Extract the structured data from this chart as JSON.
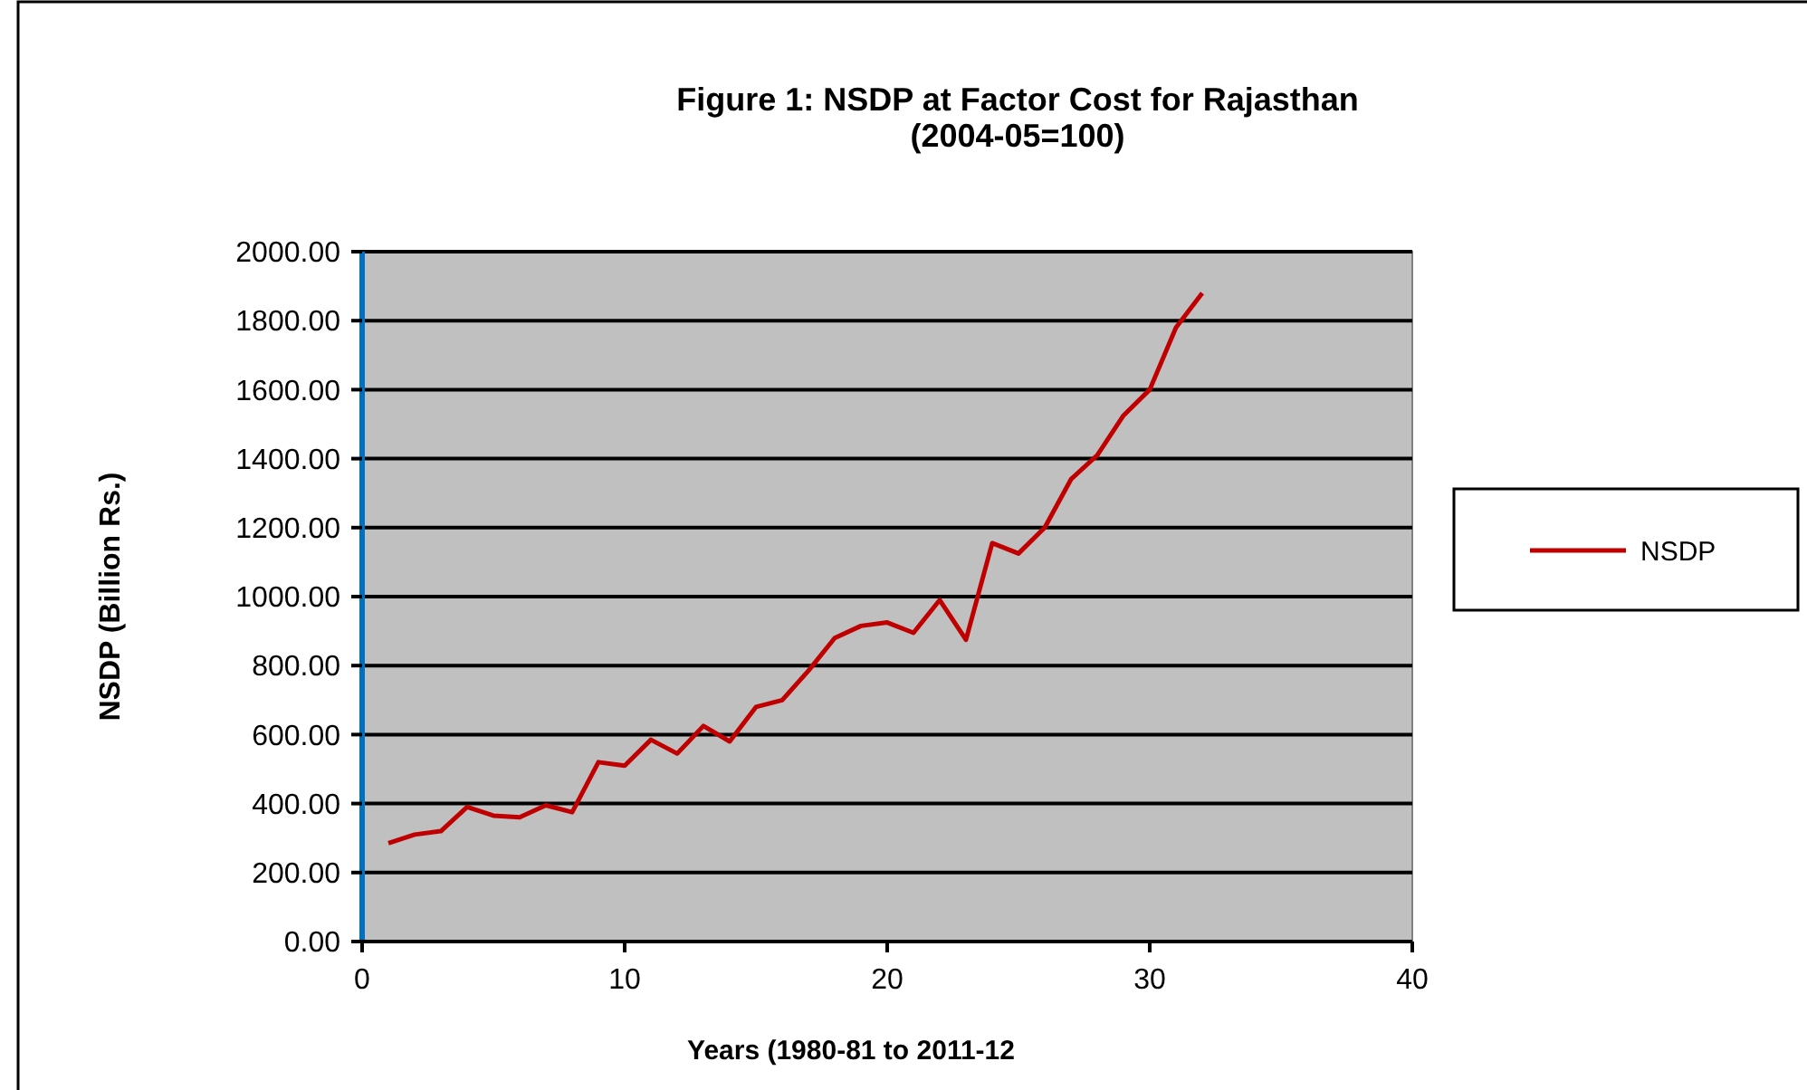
{
  "chart_data": {
    "type": "line",
    "title": "Figure 1: NSDP at Factor Cost for Rajasthan",
    "subtitle": "(2004-05=100)",
    "xlabel": "Years (1980-81 to 2011-12",
    "ylabel": "NSDP (Billion Rs.)",
    "x": [
      1,
      2,
      3,
      4,
      5,
      6,
      7,
      8,
      9,
      10,
      11,
      12,
      13,
      14,
      15,
      16,
      17,
      18,
      19,
      20,
      21,
      22,
      23,
      24,
      25,
      26,
      27,
      28,
      29,
      30,
      31,
      32
    ],
    "series": [
      {
        "name": "NSDP",
        "color": "#c00000",
        "values": [
          285,
          310,
          320,
          390,
          365,
          360,
          395,
          375,
          520,
          510,
          585,
          545,
          625,
          580,
          680,
          700,
          785,
          880,
          915,
          925,
          895,
          990,
          875,
          1155,
          1125,
          1200,
          1340,
          1410,
          1525,
          1600,
          1780,
          1880
        ]
      }
    ],
    "xlim": [
      0,
      40
    ],
    "xticks": [
      0,
      10,
      20,
      30,
      40
    ],
    "ylim": [
      0,
      2000
    ],
    "yticks": [
      {
        "value": 0,
        "label": "0.00"
      },
      {
        "value": 200,
        "label": "200.00"
      },
      {
        "value": 400,
        "label": "400.00"
      },
      {
        "value": 600,
        "label": "600.00"
      },
      {
        "value": 800,
        "label": "800.00"
      },
      {
        "value": 1000,
        "label": "1000.00"
      },
      {
        "value": 1200,
        "label": "1200.00"
      },
      {
        "value": 1400,
        "label": "1400.00"
      },
      {
        "value": 1600,
        "label": "1600.00"
      },
      {
        "value": 1800,
        "label": "1800.00"
      },
      {
        "value": 2000,
        "label": "2000.00"
      }
    ],
    "grid": "y",
    "legend": "right",
    "marker": "none",
    "line_style": "solid"
  }
}
